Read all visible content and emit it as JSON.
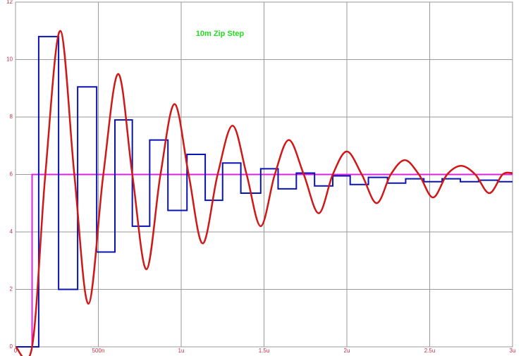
{
  "chart_data": {
    "type": "line",
    "title": "10m Zip Step",
    "xlim": [
      0,
      3
    ],
    "ylim": [
      0,
      12
    ],
    "xticks": [
      0,
      {
        "value": 0.5,
        "label": "500n"
      },
      {
        "value": 1,
        "label": "1u"
      },
      {
        "value": 1.5,
        "label": "1.5u"
      },
      {
        "value": 2,
        "label": "2u"
      },
      {
        "value": 2.5,
        "label": "2.5u"
      },
      {
        "value": 3,
        "label": "3u"
      }
    ],
    "yticks": [
      0,
      2,
      4,
      6,
      8,
      10,
      12
    ],
    "grid": true,
    "series": [
      {
        "color": "#e020e0",
        "step": true,
        "x": [
          0,
          0.1,
          3
        ],
        "values": [
          0,
          6,
          6
        ]
      },
      {
        "color": "#0a14b4",
        "step": true,
        "x": [
          0,
          0.14,
          0.26,
          0.375,
          0.49,
          0.6,
          0.705,
          0.81,
          0.92,
          1.035,
          1.145,
          1.25,
          1.36,
          1.48,
          1.585,
          1.695,
          1.805,
          1.915,
          2.02,
          2.13,
          2.245,
          2.355,
          2.465,
          2.575,
          2.685,
          2.795,
          2.91,
          3
        ],
        "values": [
          0,
          10.8,
          2.0,
          9.05,
          3.3,
          7.9,
          4.2,
          7.2,
          4.75,
          6.7,
          5.1,
          6.4,
          5.35,
          6.2,
          5.5,
          6.05,
          5.6,
          5.95,
          5.65,
          5.9,
          5.7,
          5.85,
          5.75,
          5.85,
          5.75,
          5.8,
          5.75,
          5.75
        ]
      },
      {
        "color": "#d01818",
        "step": false,
        "x": [
          0,
          0.1,
          0.18,
          0.27,
          0.355,
          0.44,
          0.53,
          0.62,
          0.705,
          0.79,
          0.875,
          0.96,
          1.045,
          1.13,
          1.22,
          1.31,
          1.395,
          1.48,
          1.565,
          1.65,
          1.74,
          1.83,
          1.915,
          2.0,
          2.09,
          2.18,
          2.265,
          2.35,
          2.435,
          2.52,
          2.605,
          2.69,
          2.775,
          2.86,
          2.94,
          3
        ],
        "values": [
          0,
          0,
          6,
          11,
          6,
          1.5,
          6,
          9.5,
          6,
          2.7,
          6,
          8.45,
          6,
          3.6,
          6,
          7.7,
          6,
          4.2,
          6,
          7.2,
          6,
          4.65,
          6,
          6.8,
          6,
          5.0,
          6,
          6.5,
          6,
          5.2,
          6,
          6.3,
          6,
          5.35,
          6,
          6.05
        ]
      }
    ]
  }
}
